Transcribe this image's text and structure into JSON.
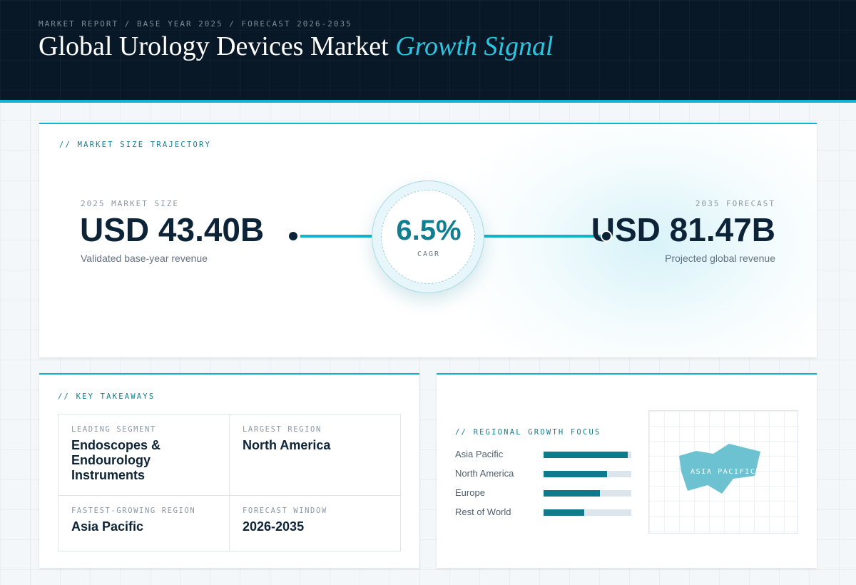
{
  "header": {
    "breadcrumb": "MARKET REPORT / BASE YEAR 2025 / FORECAST 2026-2035",
    "title_main": "Global Urology Devices Market",
    "title_accent": "Growth Signal"
  },
  "trajectory": {
    "label": "// MARKET SIZE TRAJECTORY",
    "base": {
      "caption": "2025 MARKET SIZE",
      "value": "USD 43.40B",
      "description": "Validated base-year revenue"
    },
    "cagr": {
      "value": "6.5%",
      "caption": "CAGR"
    },
    "forecast": {
      "caption": "2035 FORECAST",
      "value": "USD 81.47B",
      "description": "Projected global revenue"
    }
  },
  "takeaways": {
    "label": "// KEY TAKEAWAYS",
    "cells": [
      {
        "caption": "LEADING SEGMENT",
        "value": "Endoscopes & Endourology Instruments"
      },
      {
        "caption": "LARGEST REGION",
        "value": "North America"
      },
      {
        "caption": "FASTEST-GROWING REGION",
        "value": "Asia Pacific"
      },
      {
        "caption": "FORECAST WINDOW",
        "value": "2026-2035"
      }
    ]
  },
  "regional": {
    "label": "// REGIONAL GROWTH FOCUS",
    "bars": [
      {
        "name": "Asia Pacific",
        "level": 0.96
      },
      {
        "name": "North America",
        "level": 0.72
      },
      {
        "name": "Europe",
        "level": 0.64
      },
      {
        "name": "Rest of World",
        "level": 0.46
      }
    ],
    "map_label": "ASIA PACIFIC"
  },
  "colors": {
    "accent": "#12b3cf",
    "bar_fill": "#0e7a8b",
    "header_bg": "#081826",
    "map_shape": "#6dc2d1"
  }
}
